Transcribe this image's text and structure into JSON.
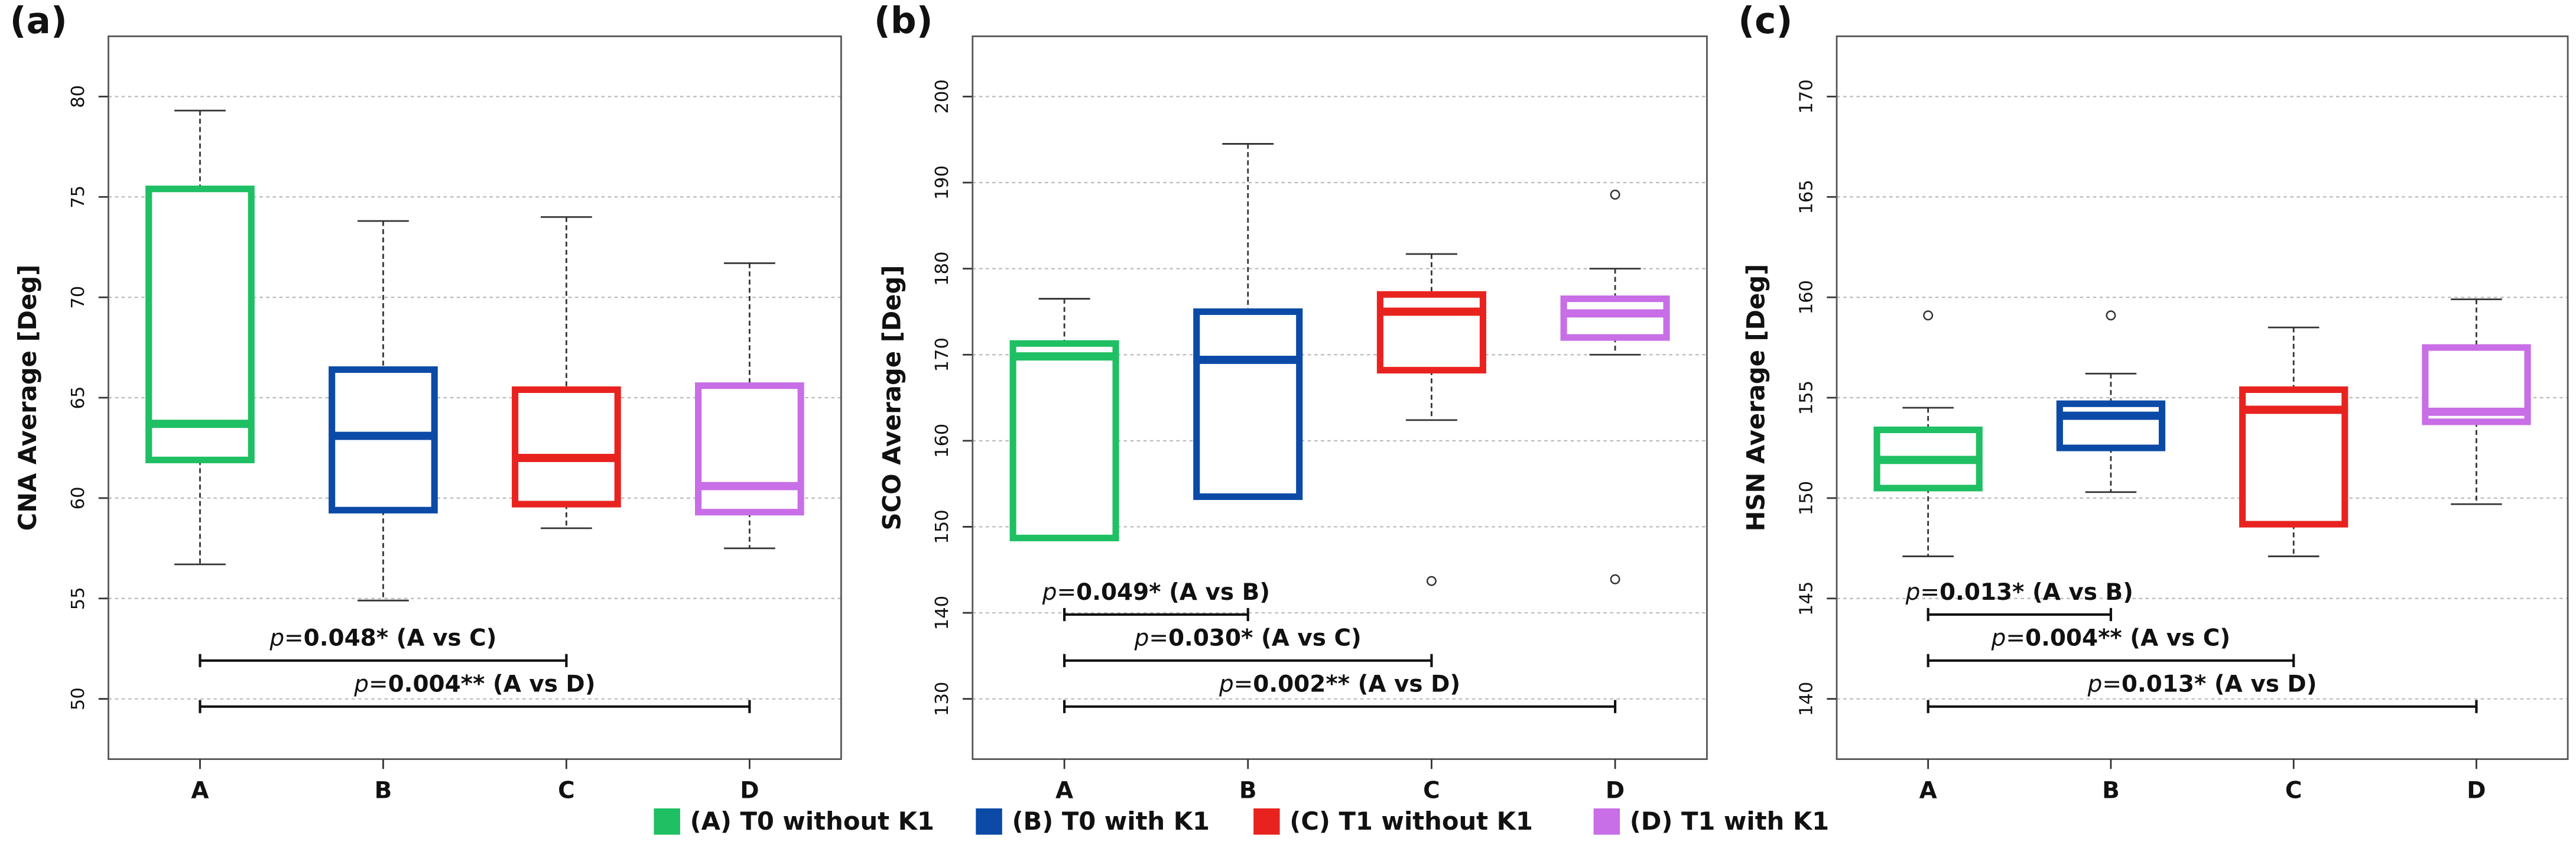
{
  "legend": {
    "items": [
      {
        "name": "(A) T0 without K1",
        "color": "#1fbf63"
      },
      {
        "name": "(B) T0 with K1",
        "color": "#0b4aa6"
      },
      {
        "name": "(C) T1 without K1",
        "color": "#e8231f"
      },
      {
        "name": "(D) T1 with K1",
        "color": "#c86ee6"
      }
    ]
  },
  "chart_data": [
    {
      "type": "box",
      "title": "(a)",
      "ylabel": "CNA Average [Deg]",
      "categories": [
        "A",
        "B",
        "C",
        "D"
      ],
      "boxes": [
        {
          "min": 56.7,
          "q1": 61.9,
          "median": 63.7,
          "q3": 75.4,
          "max": 79.3,
          "outliers": []
        },
        {
          "min": 54.9,
          "q1": 59.4,
          "median": 63.1,
          "q3": 66.4,
          "max": 73.8,
          "outliers": []
        },
        {
          "min": 58.5,
          "q1": 59.7,
          "median": 62.0,
          "q3": 65.4,
          "max": 74.0,
          "outliers": []
        },
        {
          "min": 57.5,
          "q1": 59.3,
          "median": 60.6,
          "q3": 65.6,
          "max": 71.7,
          "outliers": []
        }
      ],
      "ylim": [
        47,
        83
      ],
      "yticks": [
        50,
        55,
        60,
        65,
        70,
        75,
        80
      ],
      "grid": true,
      "annotations": [
        {
          "from": "A",
          "to": "C",
          "label_parts": [
            "p",
            "=",
            "0.048* (A vs C)"
          ]
        },
        {
          "from": "A",
          "to": "D",
          "label_parts": [
            "p",
            "=",
            "0.004** (A vs D)"
          ]
        }
      ]
    },
    {
      "type": "box",
      "title": "(b)",
      "ylabel": "SCO Average [Deg]",
      "categories": [
        "A",
        "B",
        "C",
        "D"
      ],
      "boxes": [
        {
          "min": 148.7,
          "q1": 148.7,
          "median": 169.8,
          "q3": 171.3,
          "max": 176.5,
          "outliers": []
        },
        {
          "min": 153.5,
          "q1": 153.5,
          "median": 169.4,
          "q3": 175.0,
          "max": 194.5,
          "outliers": []
        },
        {
          "min": 162.4,
          "q1": 168.2,
          "median": 175.0,
          "q3": 177.0,
          "max": 181.7,
          "outliers": [
            143.7
          ]
        },
        {
          "min": 170.0,
          "q1": 172.0,
          "median": 174.8,
          "q3": 176.5,
          "max": 180.0,
          "outliers": [
            188.6,
            143.9
          ]
        }
      ],
      "ylim": [
        123,
        207
      ],
      "yticks": [
        130,
        140,
        150,
        160,
        170,
        180,
        190,
        200
      ],
      "grid": true,
      "annotations": [
        {
          "from": "A",
          "to": "B",
          "label_parts": [
            "p",
            "=",
            "0.049* (A vs B)"
          ]
        },
        {
          "from": "A",
          "to": "C",
          "label_parts": [
            "p",
            "=",
            "0.030* (A vs C)"
          ]
        },
        {
          "from": "A",
          "to": "D",
          "label_parts": [
            "p",
            "=",
            "0.002** (A vs D)"
          ]
        }
      ]
    },
    {
      "type": "box",
      "title": "(c)",
      "ylabel": "HSN Average [Deg]",
      "categories": [
        "A",
        "B",
        "C",
        "D"
      ],
      "boxes": [
        {
          "min": 147.1,
          "q1": 150.5,
          "median": 151.9,
          "q3": 153.4,
          "max": 154.5,
          "outliers": [
            159.1
          ]
        },
        {
          "min": 150.3,
          "q1": 152.5,
          "median": 154.1,
          "q3": 154.7,
          "max": 156.2,
          "outliers": [
            159.1
          ]
        },
        {
          "min": 147.1,
          "q1": 148.7,
          "median": 154.4,
          "q3": 155.4,
          "max": 158.5,
          "outliers": []
        },
        {
          "min": 149.7,
          "q1": 153.8,
          "median": 154.3,
          "q3": 157.5,
          "max": 159.9,
          "outliers": []
        }
      ],
      "ylim": [
        137,
        173
      ],
      "yticks": [
        140,
        145,
        150,
        155,
        160,
        165,
        170
      ],
      "grid": true,
      "annotations": [
        {
          "from": "A",
          "to": "B",
          "label_parts": [
            "p",
            "=",
            "0.013* (A vs B)"
          ]
        },
        {
          "from": "A",
          "to": "C",
          "label_parts": [
            "p",
            "=",
            "0.004** (A vs C)"
          ]
        },
        {
          "from": "A",
          "to": "D",
          "label_parts": [
            "p",
            "=",
            "0.013* (A vs D)"
          ]
        }
      ]
    }
  ]
}
